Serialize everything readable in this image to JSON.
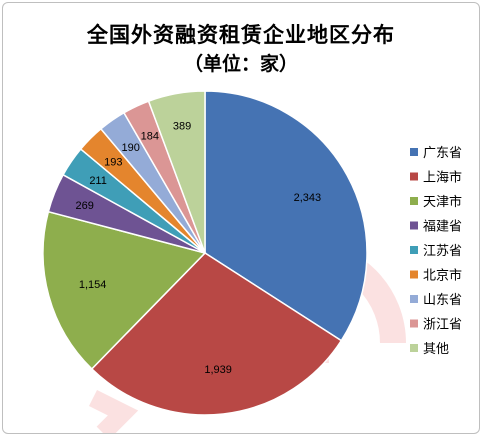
{
  "chart_data": {
    "type": "pie",
    "title": "全国外资融资租赁企业地区分布",
    "subtitle": "（单位：家）",
    "categories": [
      "广东省",
      "上海市",
      "天津市",
      "福建省",
      "江苏省",
      "北京市",
      "山东省",
      "浙江省",
      "其他"
    ],
    "values": [
      2343,
      1939,
      1154,
      269,
      211,
      193,
      190,
      184,
      389
    ],
    "labels": [
      "2,343",
      "1,939",
      "1,154",
      "269",
      "211",
      "193",
      "190",
      "184",
      "389"
    ],
    "colors": [
      "#4573B3",
      "#B84845",
      "#8EAE4D",
      "#6E5393",
      "#3F9EB7",
      "#E4852D",
      "#94ABD7",
      "#DB9695",
      "#BCD29A"
    ],
    "legend": "right"
  }
}
